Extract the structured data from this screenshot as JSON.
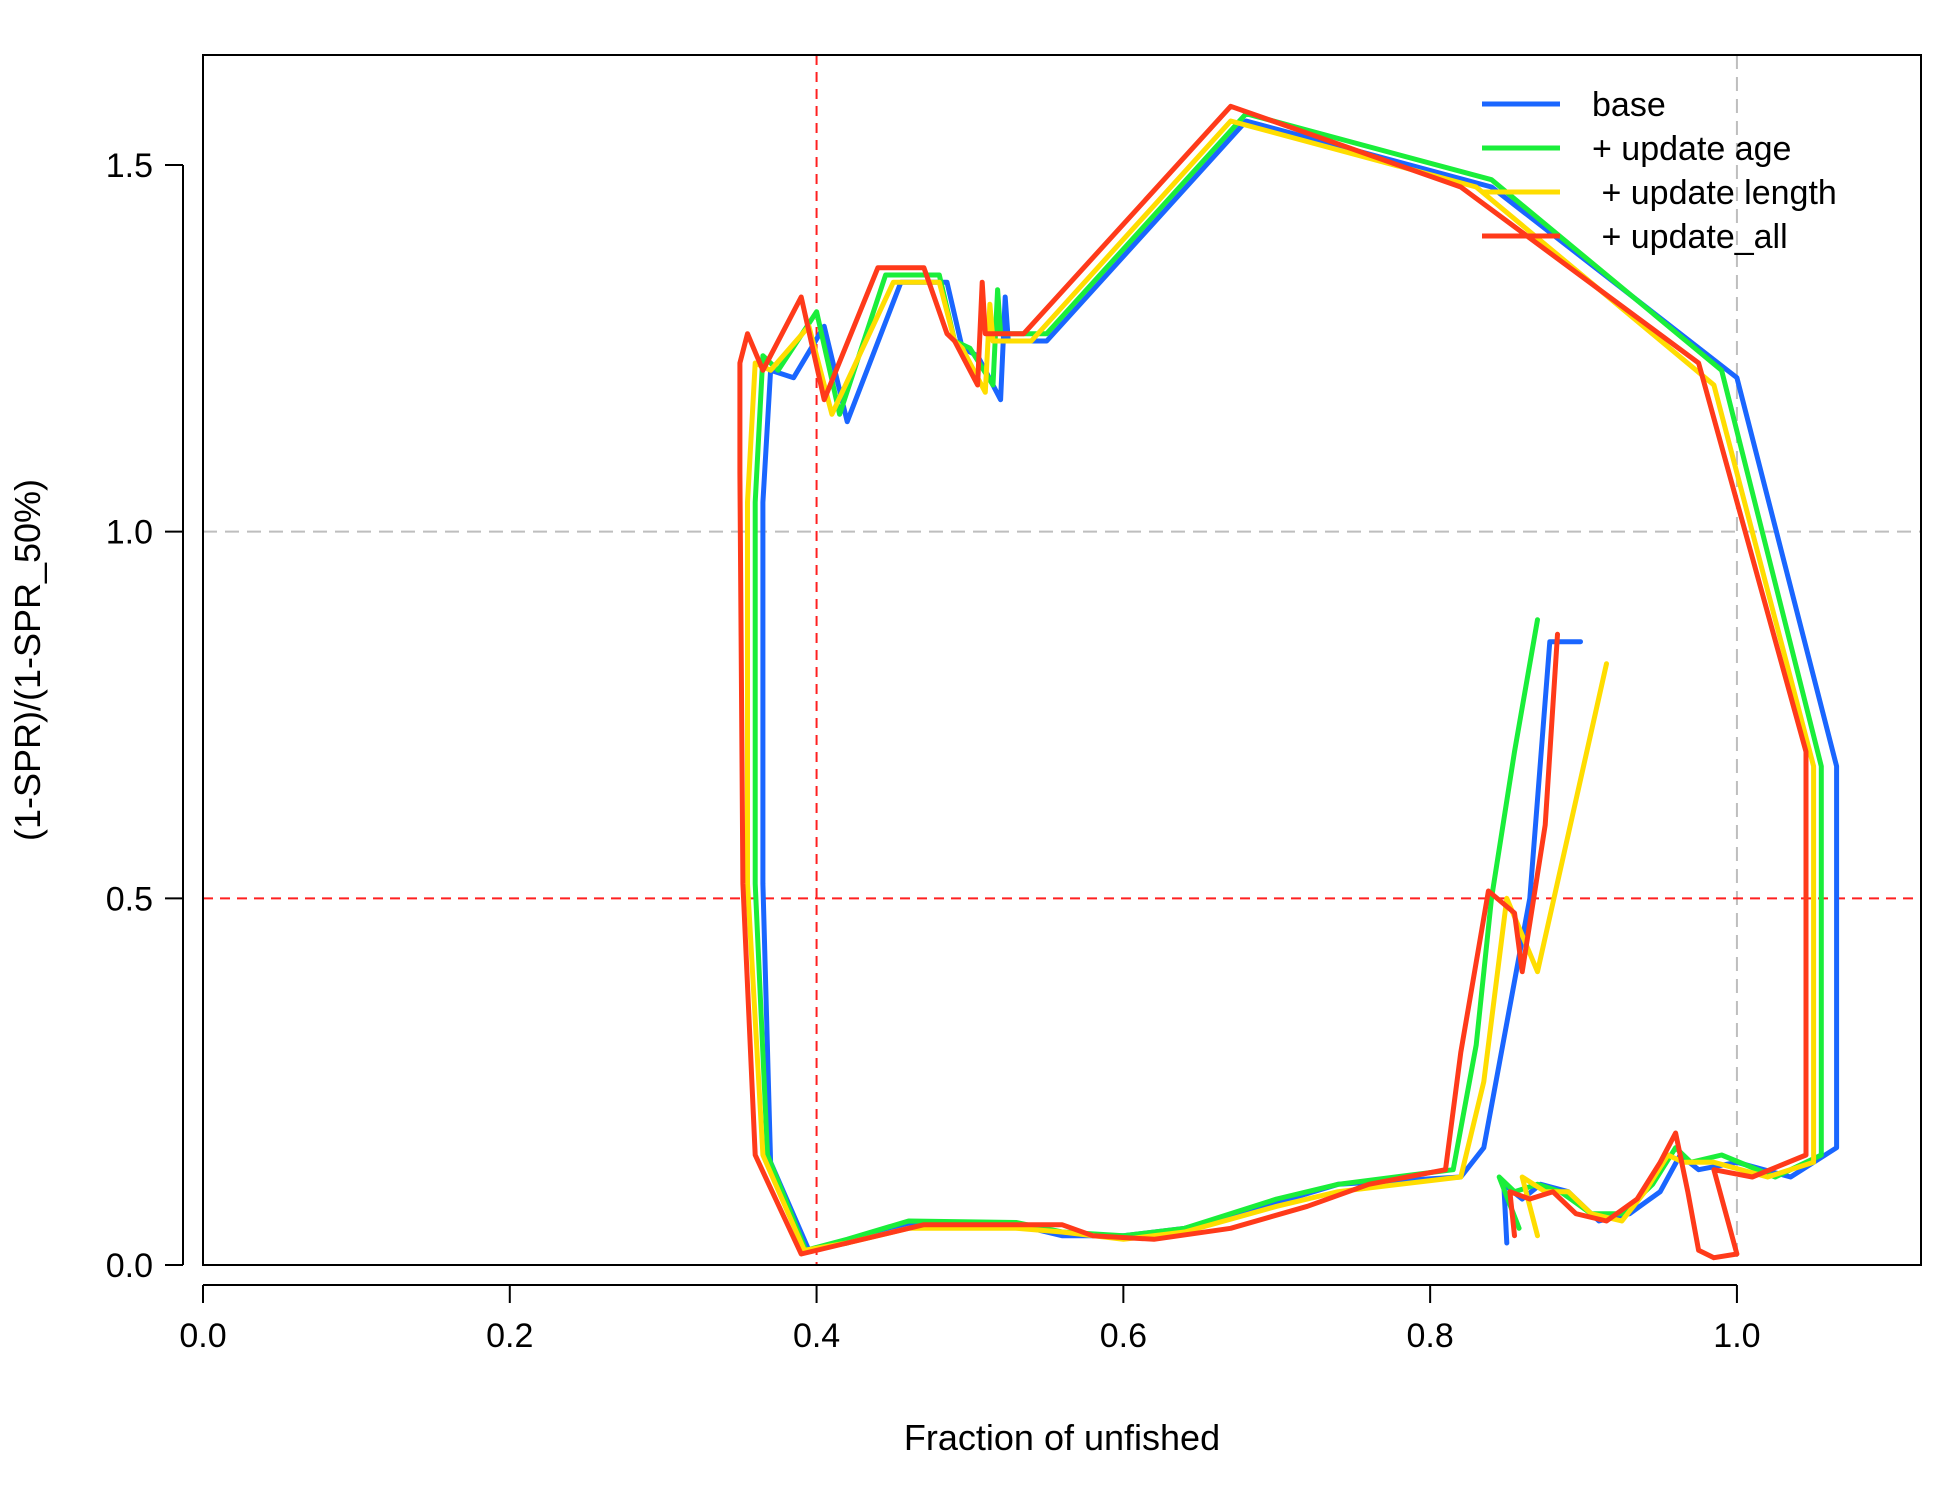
{
  "chart_data": {
    "type": "line",
    "title": "",
    "xlabel": "Fraction of unfished",
    "ylabel": "(1-SPR)/(1-SPR_50%)",
    "xlim": [
      0,
      1.12
    ],
    "ylim": [
      0,
      1.65
    ],
    "x_ticks": [
      0.0,
      0.2,
      0.4,
      0.6,
      0.8,
      1.0
    ],
    "x_tick_labels": [
      "0.0",
      "0.2",
      "0.4",
      "0.6",
      "0.8",
      "1.0"
    ],
    "y_ticks": [
      0.0,
      0.5,
      1.0,
      1.5
    ],
    "y_tick_labels": [
      "0.0",
      "0.5",
      "1.0",
      "1.5"
    ],
    "grid": false,
    "legend_position": "top-right",
    "reference_lines": [
      {
        "axis": "x",
        "value": 0.4,
        "color": "#ff2020",
        "style": "dashed"
      },
      {
        "axis": "x",
        "value": 1.0,
        "color": "#bebebe",
        "style": "dashed"
      },
      {
        "axis": "y",
        "value": 0.5,
        "color": "#ff2020",
        "style": "dashed"
      },
      {
        "axis": "y",
        "value": 1.0,
        "color": "#bebebe",
        "style": "dashed"
      }
    ],
    "series": [
      {
        "name": "base",
        "color": "#1a66ff",
        "points": [
          [
            0.85,
            0.03
          ],
          [
            0.848,
            0.11
          ],
          [
            0.86,
            0.09
          ],
          [
            0.872,
            0.11
          ],
          [
            0.89,
            0.1
          ],
          [
            0.91,
            0.06
          ],
          [
            0.93,
            0.07
          ],
          [
            0.95,
            0.1
          ],
          [
            0.963,
            0.15
          ],
          [
            0.975,
            0.13
          ],
          [
            1.0,
            0.14
          ],
          [
            1.035,
            0.12
          ],
          [
            1.065,
            0.16
          ],
          [
            1.065,
            0.68
          ],
          [
            1.0,
            1.21
          ],
          [
            0.84,
            1.47
          ],
          [
            0.68,
            1.56
          ],
          [
            0.55,
            1.26
          ],
          [
            0.525,
            1.26
          ],
          [
            0.523,
            1.32
          ],
          [
            0.52,
            1.18
          ],
          [
            0.505,
            1.24
          ],
          [
            0.495,
            1.25
          ],
          [
            0.485,
            1.34
          ],
          [
            0.455,
            1.34
          ],
          [
            0.42,
            1.15
          ],
          [
            0.405,
            1.28
          ],
          [
            0.385,
            1.21
          ],
          [
            0.37,
            1.22
          ],
          [
            0.365,
            1.04
          ],
          [
            0.365,
            0.52
          ],
          [
            0.37,
            0.14
          ],
          [
            0.395,
            0.02
          ],
          [
            0.42,
            0.03
          ],
          [
            0.46,
            0.055
          ],
          [
            0.53,
            0.055
          ],
          [
            0.56,
            0.04
          ],
          [
            0.6,
            0.04
          ],
          [
            0.64,
            0.05
          ],
          [
            0.7,
            0.085
          ],
          [
            0.74,
            0.11
          ],
          [
            0.82,
            0.12
          ],
          [
            0.835,
            0.16
          ],
          [
            0.865,
            0.5
          ],
          [
            0.878,
            0.85
          ],
          [
            0.898,
            0.85
          ]
        ]
      },
      {
        "name": "+ update age",
        "color": "#1aee3a",
        "points": [
          [
            0.858,
            0.05
          ],
          [
            0.845,
            0.12
          ],
          [
            0.855,
            0.1
          ],
          [
            0.87,
            0.11
          ],
          [
            0.885,
            0.1
          ],
          [
            0.905,
            0.07
          ],
          [
            0.925,
            0.07
          ],
          [
            0.945,
            0.11
          ],
          [
            0.96,
            0.16
          ],
          [
            0.97,
            0.14
          ],
          [
            0.99,
            0.15
          ],
          [
            1.025,
            0.12
          ],
          [
            1.055,
            0.15
          ],
          [
            1.055,
            0.68
          ],
          [
            0.99,
            1.22
          ],
          [
            0.84,
            1.48
          ],
          [
            0.68,
            1.57
          ],
          [
            0.55,
            1.27
          ],
          [
            0.52,
            1.27
          ],
          [
            0.518,
            1.33
          ],
          [
            0.515,
            1.2
          ],
          [
            0.5,
            1.25
          ],
          [
            0.49,
            1.26
          ],
          [
            0.48,
            1.35
          ],
          [
            0.445,
            1.35
          ],
          [
            0.415,
            1.16
          ],
          [
            0.4,
            1.3
          ],
          [
            0.375,
            1.22
          ],
          [
            0.365,
            1.24
          ],
          [
            0.36,
            1.04
          ],
          [
            0.36,
            0.52
          ],
          [
            0.368,
            0.15
          ],
          [
            0.393,
            0.02
          ],
          [
            0.42,
            0.035
          ],
          [
            0.46,
            0.06
          ],
          [
            0.53,
            0.058
          ],
          [
            0.56,
            0.045
          ],
          [
            0.6,
            0.04
          ],
          [
            0.64,
            0.05
          ],
          [
            0.7,
            0.09
          ],
          [
            0.74,
            0.11
          ],
          [
            0.815,
            0.13
          ],
          [
            0.83,
            0.3
          ],
          [
            0.84,
            0.5
          ],
          [
            0.855,
            0.7
          ],
          [
            0.87,
            0.88
          ]
        ]
      },
      {
        "name": " + update length",
        "color": "#ffdd00",
        "points": [
          [
            0.87,
            0.04
          ],
          [
            0.86,
            0.12
          ],
          [
            0.875,
            0.1
          ],
          [
            0.89,
            0.1
          ],
          [
            0.905,
            0.07
          ],
          [
            0.925,
            0.06
          ],
          [
            0.94,
            0.1
          ],
          [
            0.955,
            0.15
          ],
          [
            0.965,
            0.14
          ],
          [
            0.985,
            0.14
          ],
          [
            1.02,
            0.12
          ],
          [
            1.05,
            0.14
          ],
          [
            1.05,
            0.68
          ],
          [
            0.985,
            1.2
          ],
          [
            0.83,
            1.47
          ],
          [
            0.67,
            1.56
          ],
          [
            0.54,
            1.26
          ],
          [
            0.515,
            1.26
          ],
          [
            0.513,
            1.31
          ],
          [
            0.51,
            1.19
          ],
          [
            0.495,
            1.25
          ],
          [
            0.49,
            1.26
          ],
          [
            0.48,
            1.34
          ],
          [
            0.45,
            1.34
          ],
          [
            0.41,
            1.16
          ],
          [
            0.395,
            1.28
          ],
          [
            0.37,
            1.22
          ],
          [
            0.36,
            1.23
          ],
          [
            0.355,
            1.04
          ],
          [
            0.355,
            0.52
          ],
          [
            0.365,
            0.15
          ],
          [
            0.392,
            0.02
          ],
          [
            0.42,
            0.03
          ],
          [
            0.46,
            0.05
          ],
          [
            0.53,
            0.05
          ],
          [
            0.56,
            0.045
          ],
          [
            0.6,
            0.035
          ],
          [
            0.64,
            0.045
          ],
          [
            0.7,
            0.08
          ],
          [
            0.74,
            0.1
          ],
          [
            0.82,
            0.12
          ],
          [
            0.835,
            0.25
          ],
          [
            0.85,
            0.5
          ],
          [
            0.87,
            0.4
          ],
          [
            0.915,
            0.82
          ]
        ]
      },
      {
        "name": " + update_all",
        "color": "#ff3a1a",
        "points": [
          [
            0.855,
            0.04
          ],
          [
            0.852,
            0.1
          ],
          [
            0.865,
            0.09
          ],
          [
            0.88,
            0.1
          ],
          [
            0.895,
            0.07
          ],
          [
            0.915,
            0.06
          ],
          [
            0.935,
            0.09
          ],
          [
            0.95,
            0.14
          ],
          [
            0.96,
            0.18
          ],
          [
            0.968,
            0.1
          ],
          [
            0.975,
            0.02
          ],
          [
            0.985,
            0.01
          ],
          [
            1.0,
            0.015
          ],
          [
            0.985,
            0.13
          ],
          [
            1.01,
            0.12
          ],
          [
            1.045,
            0.15
          ],
          [
            1.045,
            0.7
          ],
          [
            0.975,
            1.23
          ],
          [
            0.82,
            1.47
          ],
          [
            0.67,
            1.58
          ],
          [
            0.535,
            1.27
          ],
          [
            0.51,
            1.27
          ],
          [
            0.508,
            1.34
          ],
          [
            0.505,
            1.2
          ],
          [
            0.49,
            1.26
          ],
          [
            0.485,
            1.27
          ],
          [
            0.47,
            1.36
          ],
          [
            0.44,
            1.36
          ],
          [
            0.405,
            1.18
          ],
          [
            0.39,
            1.32
          ],
          [
            0.365,
            1.22
          ],
          [
            0.355,
            1.27
          ],
          [
            0.35,
            1.23
          ],
          [
            0.35,
            1.08
          ],
          [
            0.352,
            0.52
          ],
          [
            0.36,
            0.15
          ],
          [
            0.39,
            0.015
          ],
          [
            0.42,
            0.03
          ],
          [
            0.47,
            0.055
          ],
          [
            0.56,
            0.055
          ],
          [
            0.58,
            0.04
          ],
          [
            0.62,
            0.035
          ],
          [
            0.67,
            0.05
          ],
          [
            0.72,
            0.08
          ],
          [
            0.76,
            0.11
          ],
          [
            0.81,
            0.13
          ],
          [
            0.82,
            0.29
          ],
          [
            0.838,
            0.51
          ],
          [
            0.855,
            0.48
          ],
          [
            0.86,
            0.4
          ],
          [
            0.875,
            0.6
          ],
          [
            0.883,
            0.86
          ]
        ]
      }
    ]
  }
}
